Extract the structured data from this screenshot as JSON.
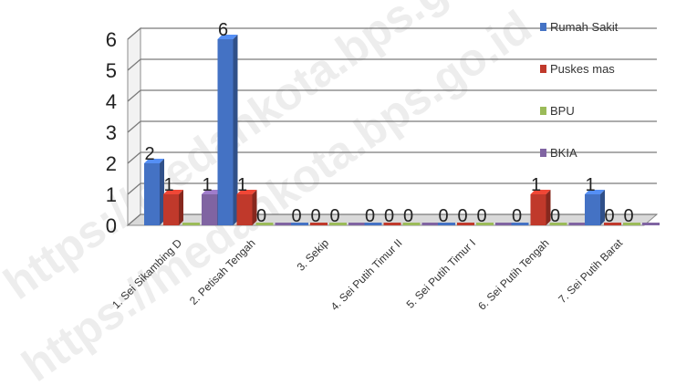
{
  "chart_data": {
    "type": "bar",
    "title": "",
    "xlabel": "",
    "ylabel": "",
    "ylim": [
      0,
      6
    ],
    "yticks": [
      0,
      1,
      2,
      3,
      4,
      5,
      6
    ],
    "grid": true,
    "legend_position": "right",
    "categories": [
      "1. Sei Sikambing D",
      "2. Petisah Tengah",
      "3. Sekip",
      "4. Sei Putih Timur II",
      "5. Sei Putih Timur I",
      "6. Sei Putih Tengah",
      "7. Sei Putih Barat"
    ],
    "series": [
      {
        "name": "Rumah Sakit",
        "color": "#4472c4",
        "values": [
          2,
          6,
          0,
          0,
          0,
          0,
          1
        ]
      },
      {
        "name": "Puskes mas",
        "color": "#c0392b",
        "values": [
          1,
          1,
          0,
          0,
          0,
          1,
          0
        ]
      },
      {
        "name": "BPU",
        "color": "#9bbb59",
        "values": [
          0,
          0,
          0,
          0,
          0,
          0,
          0
        ]
      },
      {
        "name": "BKIA",
        "color": "#8064a2",
        "values": [
          1,
          0,
          0,
          0,
          0,
          0,
          0
        ]
      }
    ],
    "data_labels": [
      [
        "2",
        "1",
        "",
        "1"
      ],
      [
        "6",
        "1",
        "0",
        ""
      ],
      [
        "0",
        "0",
        "0",
        ""
      ],
      [
        "0",
        "0",
        "0",
        ""
      ],
      [
        "0",
        "0",
        "0",
        ""
      ],
      [
        "0",
        "1",
        "0",
        ""
      ],
      [
        "1",
        "0",
        "0",
        ""
      ]
    ]
  },
  "watermark": {
    "lines": [
      "https://medankota.bps.go.id",
      "https://medankota.bps.go.id"
    ]
  }
}
